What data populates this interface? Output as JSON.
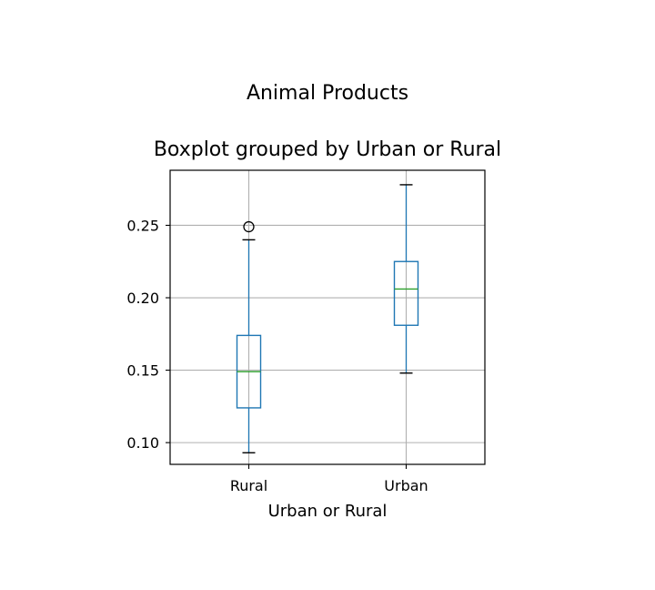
{
  "figure": {
    "suptitle": "Animal Products"
  },
  "chart_data": {
    "type": "boxplot",
    "title": "Boxplot grouped by Urban or Rural",
    "xlabel": "Urban or Rural",
    "ylabel": "",
    "categories": [
      "Rural",
      "Urban"
    ],
    "ylim": [
      0.085,
      0.288
    ],
    "yticks": [
      0.1,
      0.15,
      0.2,
      0.25
    ],
    "ytick_labels": [
      "0.10",
      "0.15",
      "0.20",
      "0.25"
    ],
    "grid": true,
    "boxes": [
      {
        "category": "Rural",
        "whisker_low": 0.093,
        "q1": 0.124,
        "median": 0.149,
        "q3": 0.174,
        "whisker_high": 0.24,
        "outliers": [
          0.249
        ]
      },
      {
        "category": "Urban",
        "whisker_low": 0.148,
        "q1": 0.181,
        "median": 0.206,
        "q3": 0.225,
        "whisker_high": 0.278,
        "outliers": []
      }
    ],
    "colors": {
      "box": "#1f77b4",
      "median": "#2ca02c",
      "cap": "#000000",
      "grid": "#b0b0b0",
      "axes": "#000000"
    }
  }
}
